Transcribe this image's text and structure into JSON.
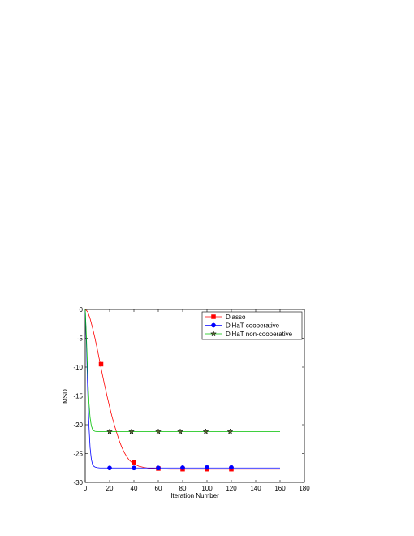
{
  "chart_data": {
    "type": "line",
    "title": "",
    "xlabel": "Iteration Number",
    "ylabel": "MSD",
    "xlim": [
      0,
      180
    ],
    "ylim": [
      -30,
      0
    ],
    "xticks": [
      0,
      20,
      40,
      60,
      80,
      100,
      120,
      140,
      160,
      180
    ],
    "yticks": [
      0,
      -5,
      -10,
      -15,
      -20,
      -25,
      -30
    ],
    "grid": false,
    "legend": {
      "placement": "top-right"
    },
    "series": [
      {
        "name": "Dlasso",
        "color": "#ff0000",
        "marker": "square",
        "x": [
          0,
          2,
          4,
          6,
          8,
          10,
          12,
          14,
          16,
          18,
          20,
          22,
          24,
          26,
          28,
          30,
          32,
          34,
          36,
          38,
          40,
          44,
          48,
          52,
          56,
          60,
          70,
          80,
          100,
          120,
          160
        ],
        "y": [
          0,
          -0.4,
          -1.6,
          -3.2,
          -5.0,
          -7.0,
          -9.1,
          -11.2,
          -13.2,
          -15.1,
          -16.9,
          -18.6,
          -20.1,
          -21.5,
          -22.8,
          -23.9,
          -24.8,
          -25.5,
          -26.1,
          -26.5,
          -26.8,
          -27.2,
          -27.4,
          -27.55,
          -27.6,
          -27.65,
          -27.7,
          -27.7,
          -27.7,
          -27.7,
          -27.7
        ],
        "marker_x": [
          13,
          40,
          60,
          80,
          100,
          120
        ],
        "marker_y": [
          -9.5,
          -26.5,
          -27.6,
          -27.7,
          -27.7,
          -27.7
        ]
      },
      {
        "name": "DiHaT cooperative",
        "color": "#0000ff",
        "marker": "circle",
        "x": [
          0,
          1,
          2,
          3,
          4,
          5,
          6,
          7,
          8,
          10,
          12,
          15,
          20,
          40,
          60,
          80,
          100,
          120,
          160
        ],
        "y": [
          0,
          -6,
          -14,
          -20,
          -24,
          -26,
          -26.9,
          -27.2,
          -27.35,
          -27.45,
          -27.5,
          -27.5,
          -27.5,
          -27.5,
          -27.5,
          -27.5,
          -27.5,
          -27.5,
          -27.5
        ],
        "marker_x": [
          20,
          40,
          60,
          80,
          100,
          120
        ],
        "marker_y": [
          -27.5,
          -27.5,
          -27.5,
          -27.45,
          -27.4,
          -27.4
        ]
      },
      {
        "name": "DiHaT non-cooperative",
        "color": "#00c000",
        "marker": "star",
        "x": [
          0,
          1,
          2,
          3,
          4,
          5,
          6,
          7,
          8,
          10,
          12,
          15,
          20,
          40,
          60,
          80,
          100,
          120,
          160
        ],
        "y": [
          0,
          -5,
          -11,
          -16,
          -18.8,
          -20.2,
          -20.8,
          -21.05,
          -21.15,
          -21.2,
          -21.2,
          -21.2,
          -21.2,
          -21.2,
          -21.2,
          -21.2,
          -21.2,
          -21.2,
          -21.2
        ],
        "marker_x": [
          20,
          38,
          60,
          78,
          99,
          119
        ],
        "marker_y": [
          -21.2,
          -21.2,
          -21.2,
          -21.2,
          -21.2,
          -21.2
        ]
      }
    ]
  }
}
